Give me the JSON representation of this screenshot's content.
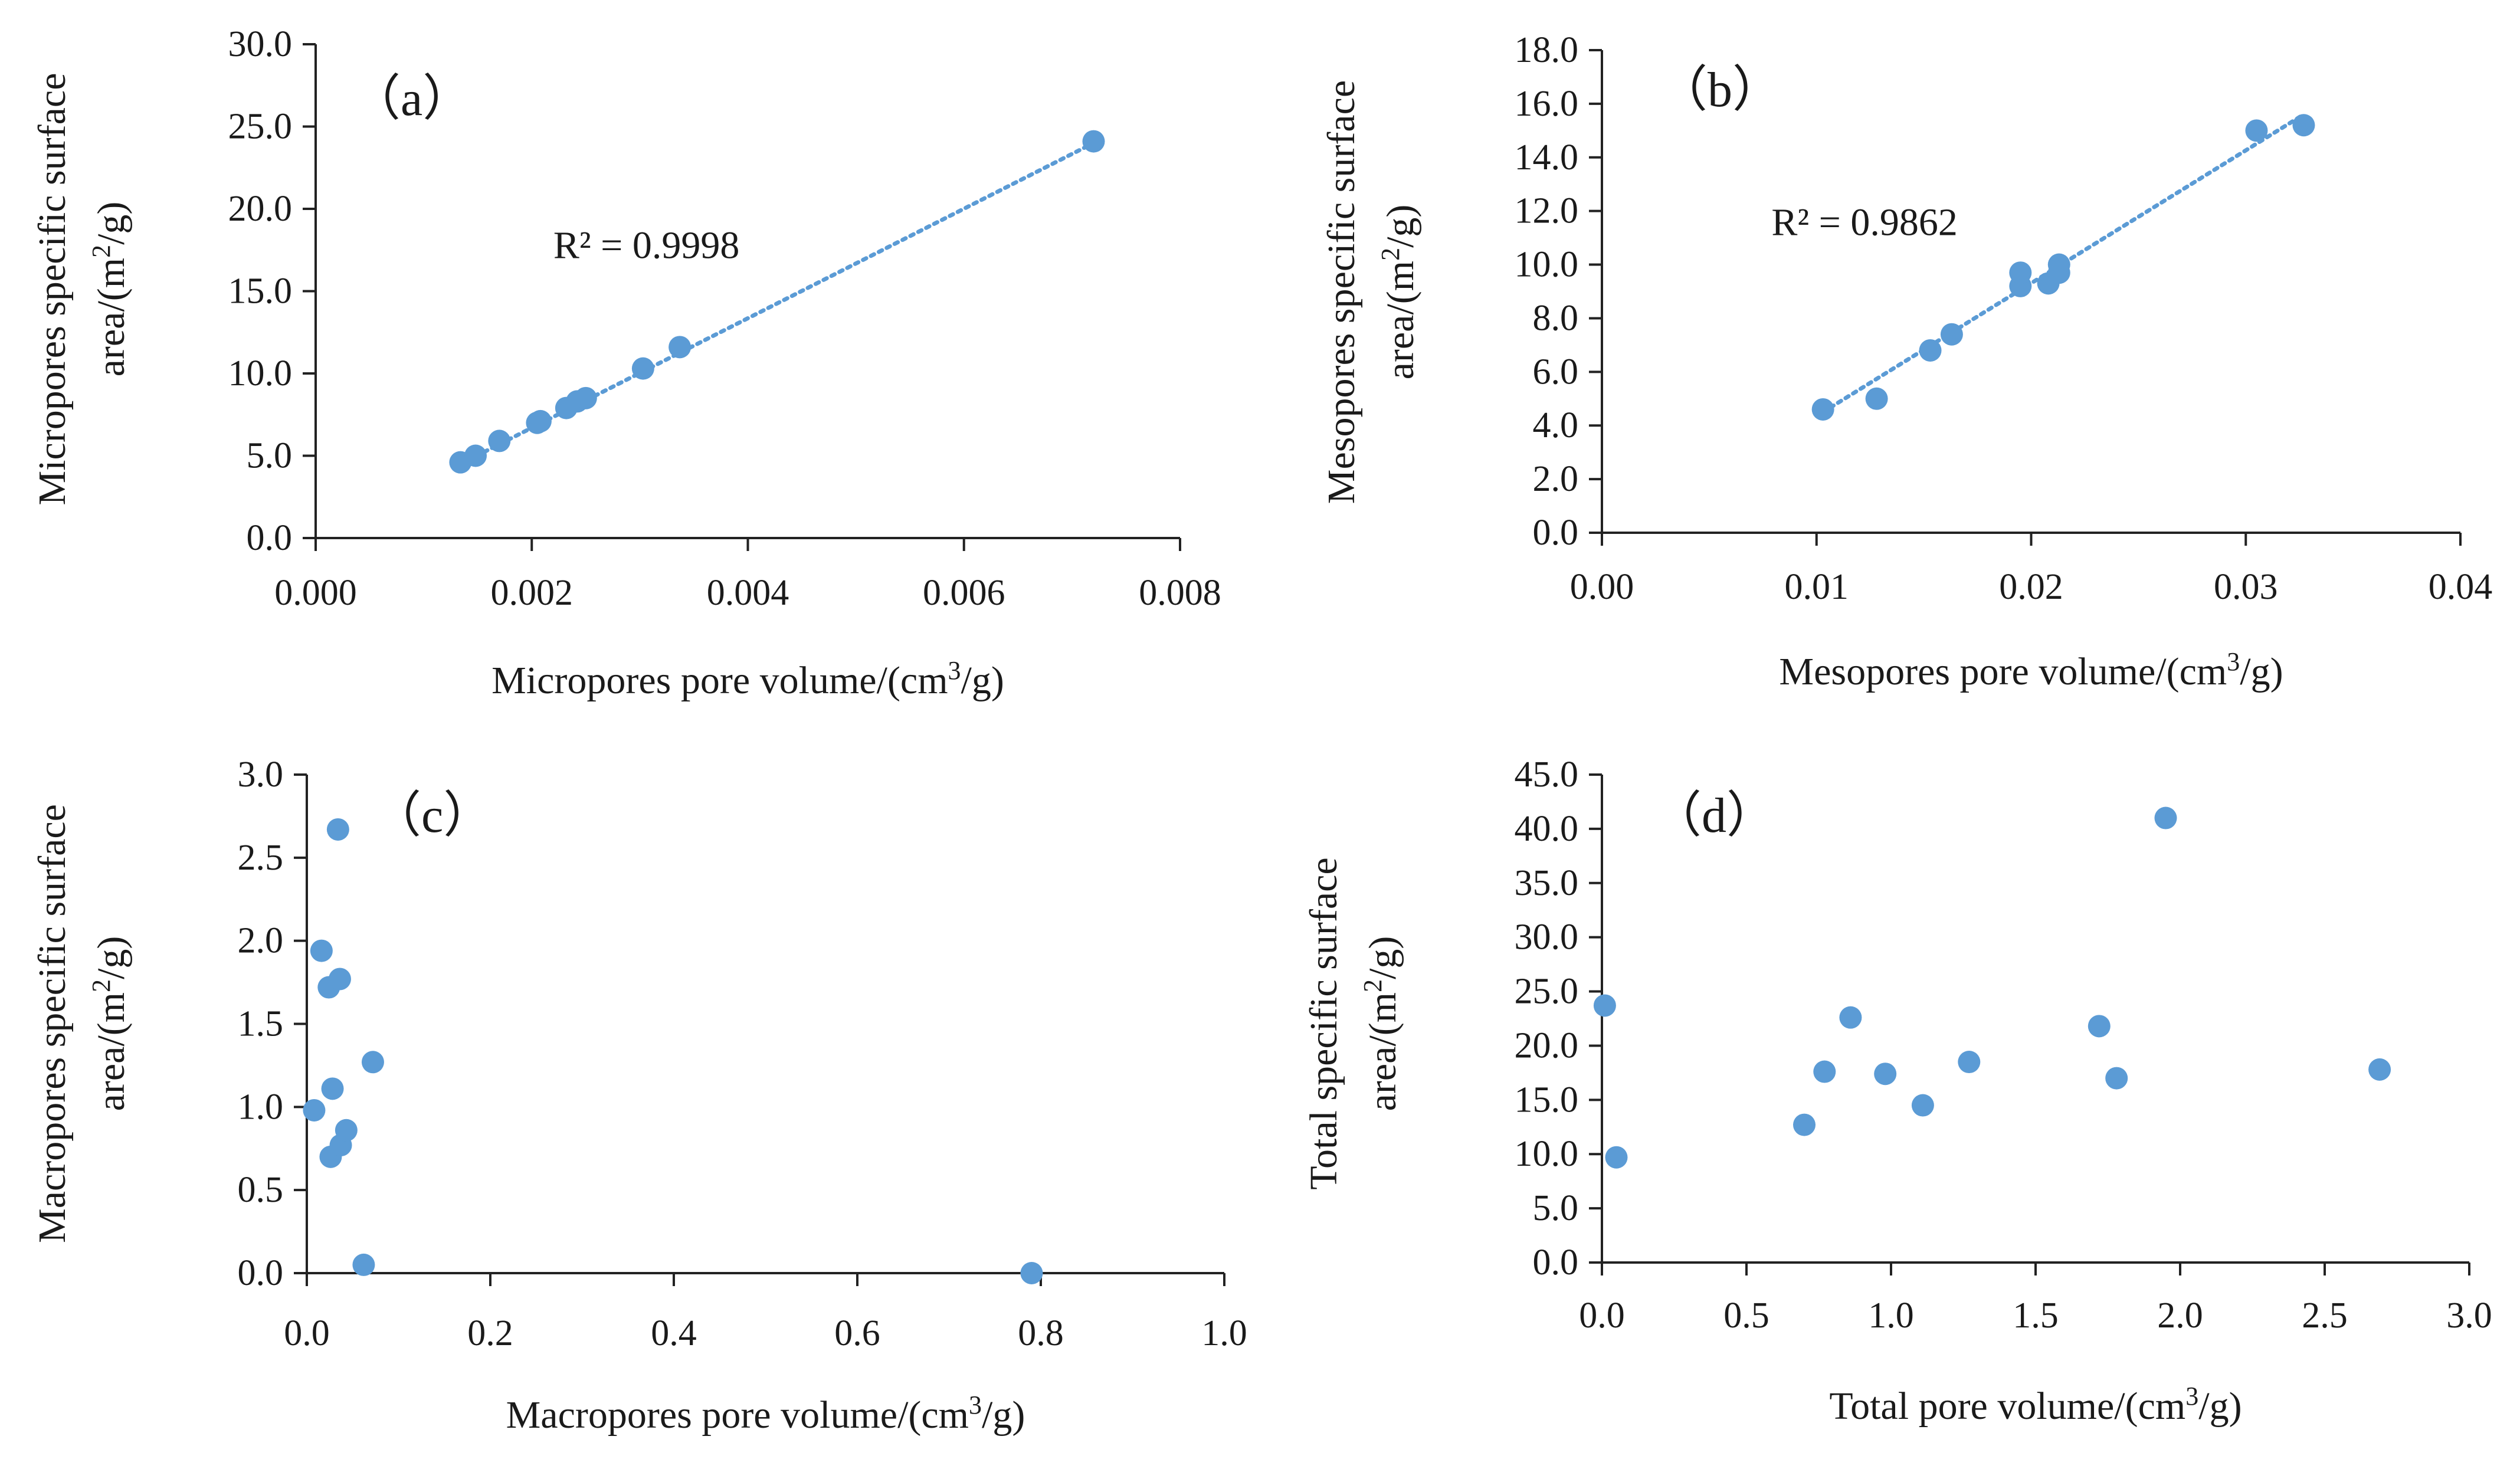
{
  "colors": {
    "point": "#5b9bd5",
    "trend": "#5b9bd5",
    "axis": "#222222",
    "text": "#1a1a1a"
  },
  "chart_data": [
    {
      "id": "a",
      "type": "scatter",
      "panel_label": "（a）",
      "xlabel": {
        "main": "Micropores pore volume/(cm",
        "sup": "3",
        "tail": "/g)"
      },
      "ylabel": {
        "line1": "Micropores specific surface",
        "line2_main": "area/(m",
        "sup": "2",
        "line2_tail": "/g)"
      },
      "xlim": [
        0,
        0.008
      ],
      "xstep": 0.002,
      "xdecimals": 3,
      "ylim": [
        0,
        30
      ],
      "ystep": 5,
      "ydecimals": 1,
      "points": [
        [
          0.00134,
          4.6
        ],
        [
          0.00148,
          5.0
        ],
        [
          0.0017,
          5.9
        ],
        [
          0.00205,
          7.0
        ],
        [
          0.00208,
          7.1
        ],
        [
          0.00232,
          7.9
        ],
        [
          0.00242,
          8.3
        ],
        [
          0.0025,
          8.5
        ],
        [
          0.00303,
          10.3
        ],
        [
          0.00337,
          11.6
        ],
        [
          0.0072,
          24.1
        ]
      ],
      "trendline": {
        "from": [
          0.00134,
          4.5
        ],
        "to": [
          0.0072,
          24.0
        ]
      },
      "r2_label": "R² = 0.9998",
      "r2_anchor": [
        0.0022,
        17.0
      ]
    },
    {
      "id": "b",
      "type": "scatter",
      "panel_label": "（b）",
      "xlabel": {
        "main": "Mesopores pore volume/(cm",
        "sup": "3",
        "tail": "/g)"
      },
      "ylabel": {
        "line1": "Mesopores specific surface",
        "line2_main": "area/(m",
        "sup": "2",
        "line2_tail": "/g)"
      },
      "xlim": [
        0,
        0.04
      ],
      "xstep": 0.01,
      "xdecimals": 2,
      "ylim": [
        0,
        18
      ],
      "ystep": 2,
      "ydecimals": 1,
      "points": [
        [
          0.0103,
          4.6
        ],
        [
          0.0128,
          5.0
        ],
        [
          0.0153,
          6.8
        ],
        [
          0.0163,
          7.4
        ],
        [
          0.0195,
          9.2
        ],
        [
          0.0195,
          9.7
        ],
        [
          0.0208,
          9.3
        ],
        [
          0.0213,
          9.7
        ],
        [
          0.0213,
          10.0
        ],
        [
          0.0305,
          15.0
        ],
        [
          0.0327,
          15.2
        ]
      ],
      "trendline": {
        "from": [
          0.0103,
          4.5
        ],
        "to": [
          0.0327,
          15.6
        ]
      },
      "r2_label": "R² = 0.9862",
      "r2_anchor": [
        0.0079,
        11.1
      ]
    },
    {
      "id": "c",
      "type": "scatter",
      "panel_label": "（c）",
      "xlabel": {
        "main": "Macropores pore volume/(cm",
        "sup": "3",
        "tail": "/g)"
      },
      "ylabel": {
        "line1": "Macropores specific surface",
        "line2_main": "area/(m",
        "sup": "2",
        "line2_tail": "/g)"
      },
      "xlim": [
        0,
        1.0
      ],
      "xstep": 0.2,
      "xdecimals": 1,
      "ylim": [
        0,
        3.0
      ],
      "ystep": 0.5,
      "ydecimals": 1,
      "points": [
        [
          0.008,
          0.98
        ],
        [
          0.016,
          1.94
        ],
        [
          0.024,
          1.72
        ],
        [
          0.028,
          1.11
        ],
        [
          0.026,
          0.7
        ],
        [
          0.034,
          2.67
        ],
        [
          0.036,
          1.77
        ],
        [
          0.037,
          0.77
        ],
        [
          0.043,
          0.86
        ],
        [
          0.062,
          0.05
        ],
        [
          0.072,
          1.27
        ],
        [
          0.79,
          0.0
        ]
      ]
    },
    {
      "id": "d",
      "type": "scatter",
      "panel_label": "（d）",
      "xlabel": {
        "main": "Total pore volume/(cm",
        "sup": "3",
        "tail": "/g)"
      },
      "ylabel": {
        "line1": "Total specific surface",
        "line2_main": "area/(m",
        "sup": "2",
        "line2_tail": "/g)"
      },
      "xlim": [
        0,
        3.0
      ],
      "xstep": 0.5,
      "xdecimals": 1,
      "ylim": [
        0,
        45
      ],
      "ystep": 5,
      "ydecimals": 1,
      "points": [
        [
          0.01,
          23.7
        ],
        [
          0.05,
          9.7
        ],
        [
          0.7,
          12.7
        ],
        [
          0.77,
          17.6
        ],
        [
          0.86,
          22.6
        ],
        [
          0.98,
          17.4
        ],
        [
          1.11,
          14.5
        ],
        [
          1.27,
          18.5
        ],
        [
          1.72,
          21.8
        ],
        [
          1.78,
          17.0
        ],
        [
          1.95,
          41.0
        ],
        [
          2.69,
          17.8
        ]
      ]
    }
  ]
}
